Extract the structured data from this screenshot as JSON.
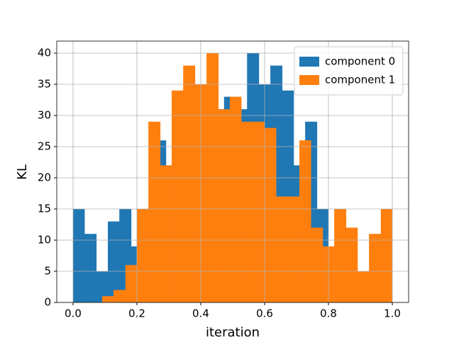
{
  "chart_data": {
    "type": "histogram",
    "xlabel": "iteration",
    "ylabel": "KL",
    "xlim": [
      -0.051,
      1.051
    ],
    "ylim": [
      0,
      41.93
    ],
    "xticks": [
      {
        "value": 0,
        "label": "0.0"
      },
      {
        "value": 0.2,
        "label": "0.2"
      },
      {
        "value": 0.4,
        "label": "0.4"
      },
      {
        "value": 0.6,
        "label": "0.6"
      },
      {
        "value": 0.8,
        "label": "0.8"
      },
      {
        "value": 1,
        "label": "1.0"
      }
    ],
    "yticks": [
      0,
      5,
      10,
      15,
      20,
      25,
      30,
      35,
      40
    ],
    "grid": true,
    "legend": "upper right",
    "series": [
      {
        "name": "component 0",
        "color": "#1f77b4",
        "bins": [
          0,
          0.036,
          0.073,
          0.109,
          0.145,
          0.182,
          0.218,
          0.255,
          0.291,
          0.327,
          0.364,
          0.4,
          0.436,
          0.473,
          0.509,
          0.545,
          0.582,
          0.618,
          0.655,
          0.691,
          0.727,
          0.764,
          0.8
        ],
        "values": [
          15,
          11,
          5,
          13,
          15,
          9,
          14,
          26,
          22,
          30,
          34,
          35,
          31,
          33,
          31,
          40,
          35,
          38,
          34,
          22,
          29,
          15
        ]
      },
      {
        "name": "component 1",
        "color": "#ff7f0e",
        "bins": [
          0.091,
          0.127,
          0.164,
          0.2,
          0.236,
          0.273,
          0.309,
          0.345,
          0.382,
          0.418,
          0.455,
          0.491,
          0.527,
          0.564,
          0.6,
          0.636,
          0.673,
          0.709,
          0.745,
          0.782,
          0.818,
          0.855,
          0.891,
          0.927,
          0.964,
          1.0
        ],
        "values": [
          1,
          2,
          6,
          15,
          29,
          22,
          34,
          38,
          35,
          40,
          31,
          33,
          29,
          29,
          28,
          17,
          17,
          26,
          12,
          9,
          15,
          12,
          5,
          11,
          15
        ]
      }
    ]
  }
}
